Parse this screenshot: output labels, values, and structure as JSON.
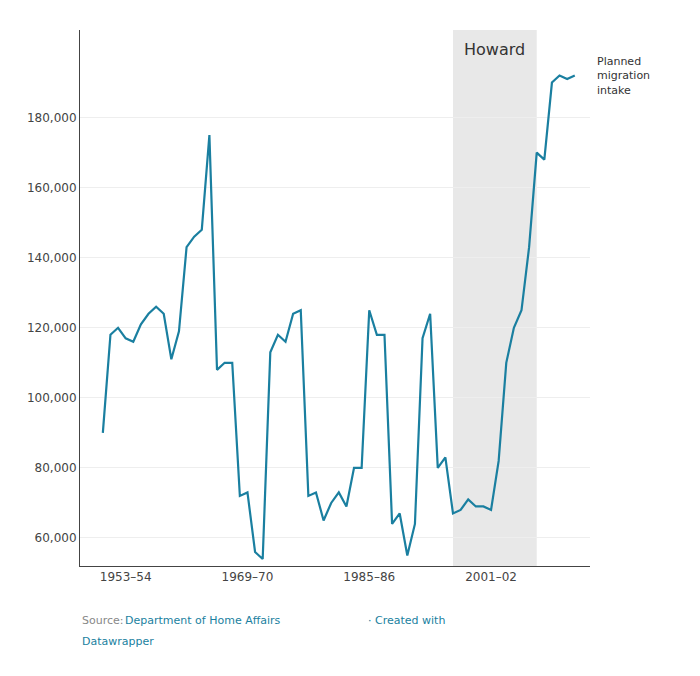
{
  "chart_data": {
    "type": "line",
    "x": [
      1950,
      1951,
      1952,
      1953,
      1954,
      1955,
      1956,
      1957,
      1958,
      1959,
      1960,
      1961,
      1962,
      1963,
      1964,
      1965,
      1966,
      1967,
      1968,
      1969,
      1970,
      1971,
      1972,
      1973,
      1974,
      1975,
      1976,
      1977,
      1978,
      1979,
      1980,
      1981,
      1982,
      1983,
      1984,
      1985,
      1986,
      1987,
      1988,
      1989,
      1990,
      1991,
      1992,
      1993,
      1994,
      1995,
      1996,
      1997,
      1998,
      1999,
      2000,
      2001,
      2002,
      2003,
      2004,
      2005,
      2006,
      2007,
      2008,
      2009,
      2010,
      2011,
      2012
    ],
    "values": [
      90000,
      118000,
      120000,
      117000,
      116000,
      121000,
      124000,
      126000,
      124000,
      111000,
      119000,
      143000,
      146000,
      148000,
      175000,
      108000,
      110000,
      110000,
      72000,
      73000,
      56000,
      54000,
      113000,
      118000,
      116000,
      124000,
      125000,
      72000,
      73000,
      65000,
      70000,
      73000,
      69000,
      80000,
      80000,
      125000,
      118000,
      118000,
      64000,
      67000,
      55000,
      64000,
      117000,
      124000,
      80000,
      83000,
      67000,
      68000,
      71000,
      69000,
      69000,
      68000,
      82000,
      110000,
      120000,
      125000,
      143000,
      170000,
      168000,
      190000,
      192000,
      191000,
      192000
    ],
    "color": "#1a7fa0",
    "xlim": [
      1947,
      2014
    ],
    "xticks": [
      {
        "value": 1953,
        "label": "1953–54"
      },
      {
        "value": 1969,
        "label": "1969–70"
      },
      {
        "value": 1985,
        "label": "1985–86"
      },
      {
        "value": 2001,
        "label": "2001–02"
      }
    ],
    "ylim": [
      52000,
      205000
    ],
    "yticks": [
      {
        "value": 60000,
        "label": "60,000"
      },
      {
        "value": 80000,
        "label": "80,000"
      },
      {
        "value": 100000,
        "label": "100,000"
      },
      {
        "value": 120000,
        "label": "120,000"
      },
      {
        "value": 140000,
        "label": "140,000"
      },
      {
        "value": 160000,
        "label": "160,000"
      },
      {
        "value": 180000,
        "label": "180,000"
      }
    ],
    "grid": "y",
    "shaded_period": {
      "from": 1996,
      "to": 2007,
      "color": "#e8e8e8",
      "label": "Howard"
    },
    "annotations": [
      "Planned\nmigration\nintake"
    ],
    "footer": [
      {
        "text": "Source: ",
        "color": "#888888"
      },
      {
        "text": "Department of Home Affairs",
        "color": "#1a7fa0"
      },
      {
        "text": "· Created with",
        "color": "#1a7fa0"
      },
      {
        "text": "Datawrapper",
        "color": "#1a7fa0"
      }
    ]
  }
}
